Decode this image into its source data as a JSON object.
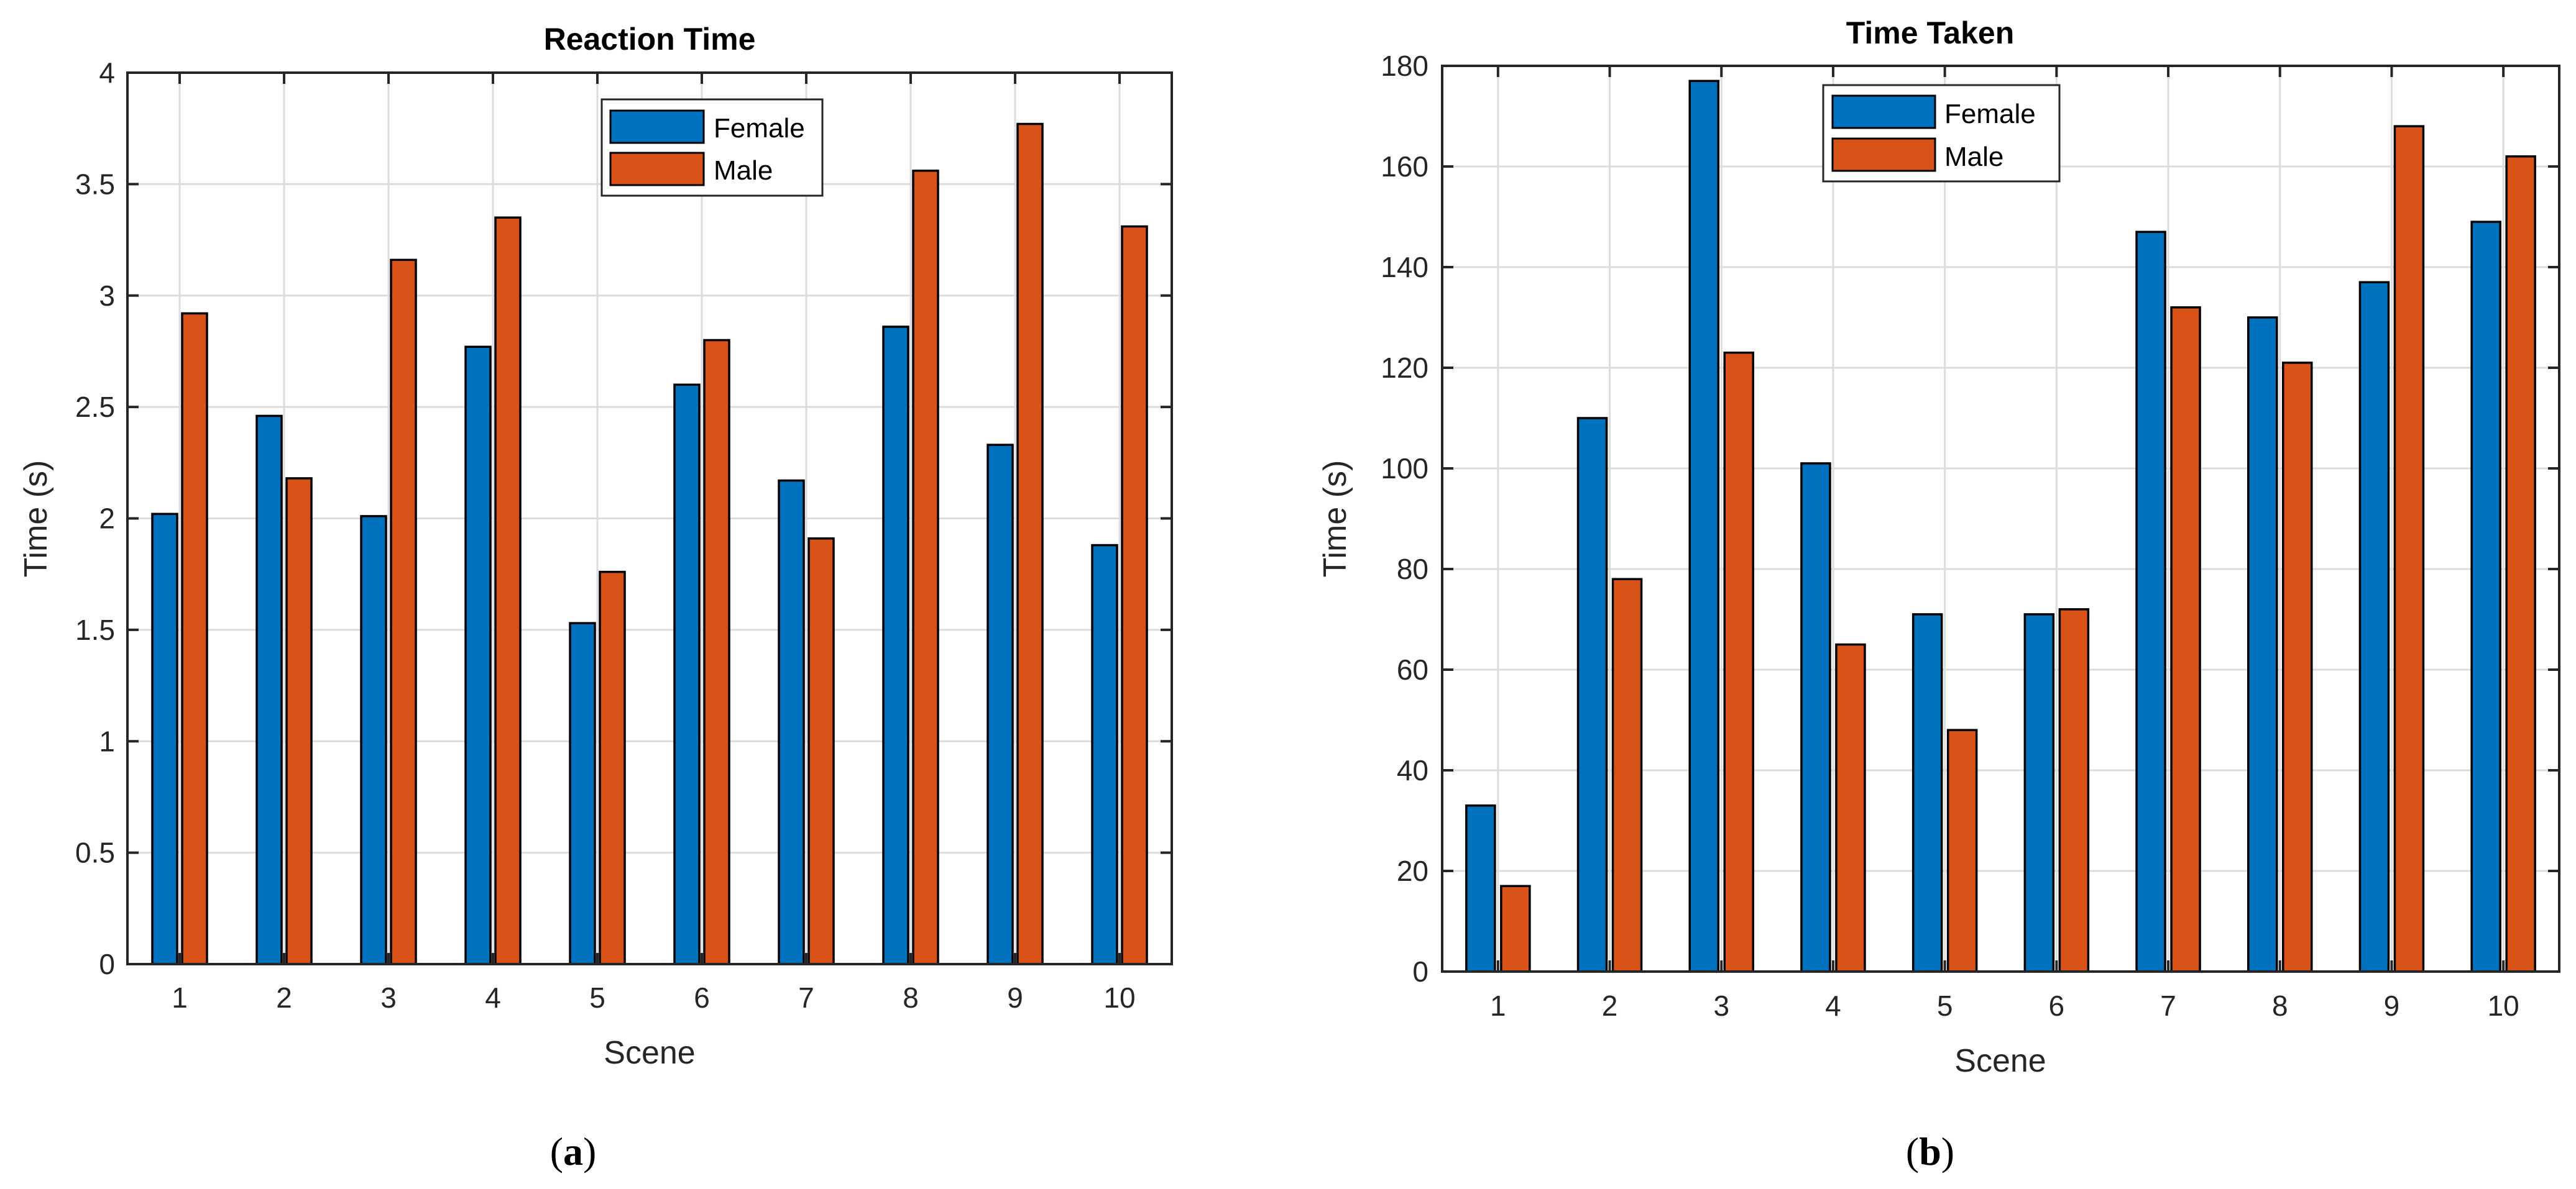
{
  "colors": {
    "female": "#0072BD",
    "male": "#D95319"
  },
  "chart_data": [
    {
      "type": "bar",
      "title": "Reaction Time",
      "xlabel": "Scene",
      "ylabel": "Time (s)",
      "caption": {
        "open": "(",
        "letter": "a",
        "close": ")"
      },
      "categories": [
        "1",
        "2",
        "3",
        "4",
        "5",
        "6",
        "7",
        "8",
        "9",
        "10"
      ],
      "ylim": [
        0,
        4
      ],
      "yticks": [
        0,
        0.5,
        1,
        1.5,
        2,
        2.5,
        3,
        3.5,
        4
      ],
      "ytick_labels": [
        "0",
        "0.5",
        "1",
        "1.5",
        "2",
        "2.5",
        "3",
        "3.5",
        "4"
      ],
      "grid": true,
      "legend_position": "top-center",
      "series": [
        {
          "name": "Female",
          "values": [
            2.02,
            2.46,
            2.01,
            2.77,
            1.53,
            2.6,
            2.17,
            2.86,
            2.33,
            1.88
          ]
        },
        {
          "name": "Male",
          "values": [
            2.92,
            2.18,
            3.16,
            3.35,
            1.76,
            2.8,
            1.91,
            3.56,
            3.77,
            3.31
          ]
        }
      ]
    },
    {
      "type": "bar",
      "title": "Time Taken",
      "xlabel": "Scene",
      "ylabel": "Time (s)",
      "caption": {
        "open": "(",
        "letter": "b",
        "close": ")"
      },
      "categories": [
        "1",
        "2",
        "3",
        "4",
        "5",
        "6",
        "7",
        "8",
        "9",
        "10"
      ],
      "ylim": [
        0,
        180
      ],
      "yticks": [
        0,
        20,
        40,
        60,
        80,
        100,
        120,
        140,
        160,
        180
      ],
      "ytick_labels": [
        "0",
        "20",
        "40",
        "60",
        "80",
        "100",
        "120",
        "140",
        "160",
        "180"
      ],
      "grid": true,
      "legend_position": "top-left",
      "series": [
        {
          "name": "Female",
          "values": [
            33,
            110,
            177,
            101,
            71,
            71,
            147,
            130,
            137,
            149
          ]
        },
        {
          "name": "Male",
          "values": [
            17,
            78,
            123,
            65,
            48,
            72,
            132,
            121,
            168,
            162
          ]
        }
      ]
    }
  ]
}
